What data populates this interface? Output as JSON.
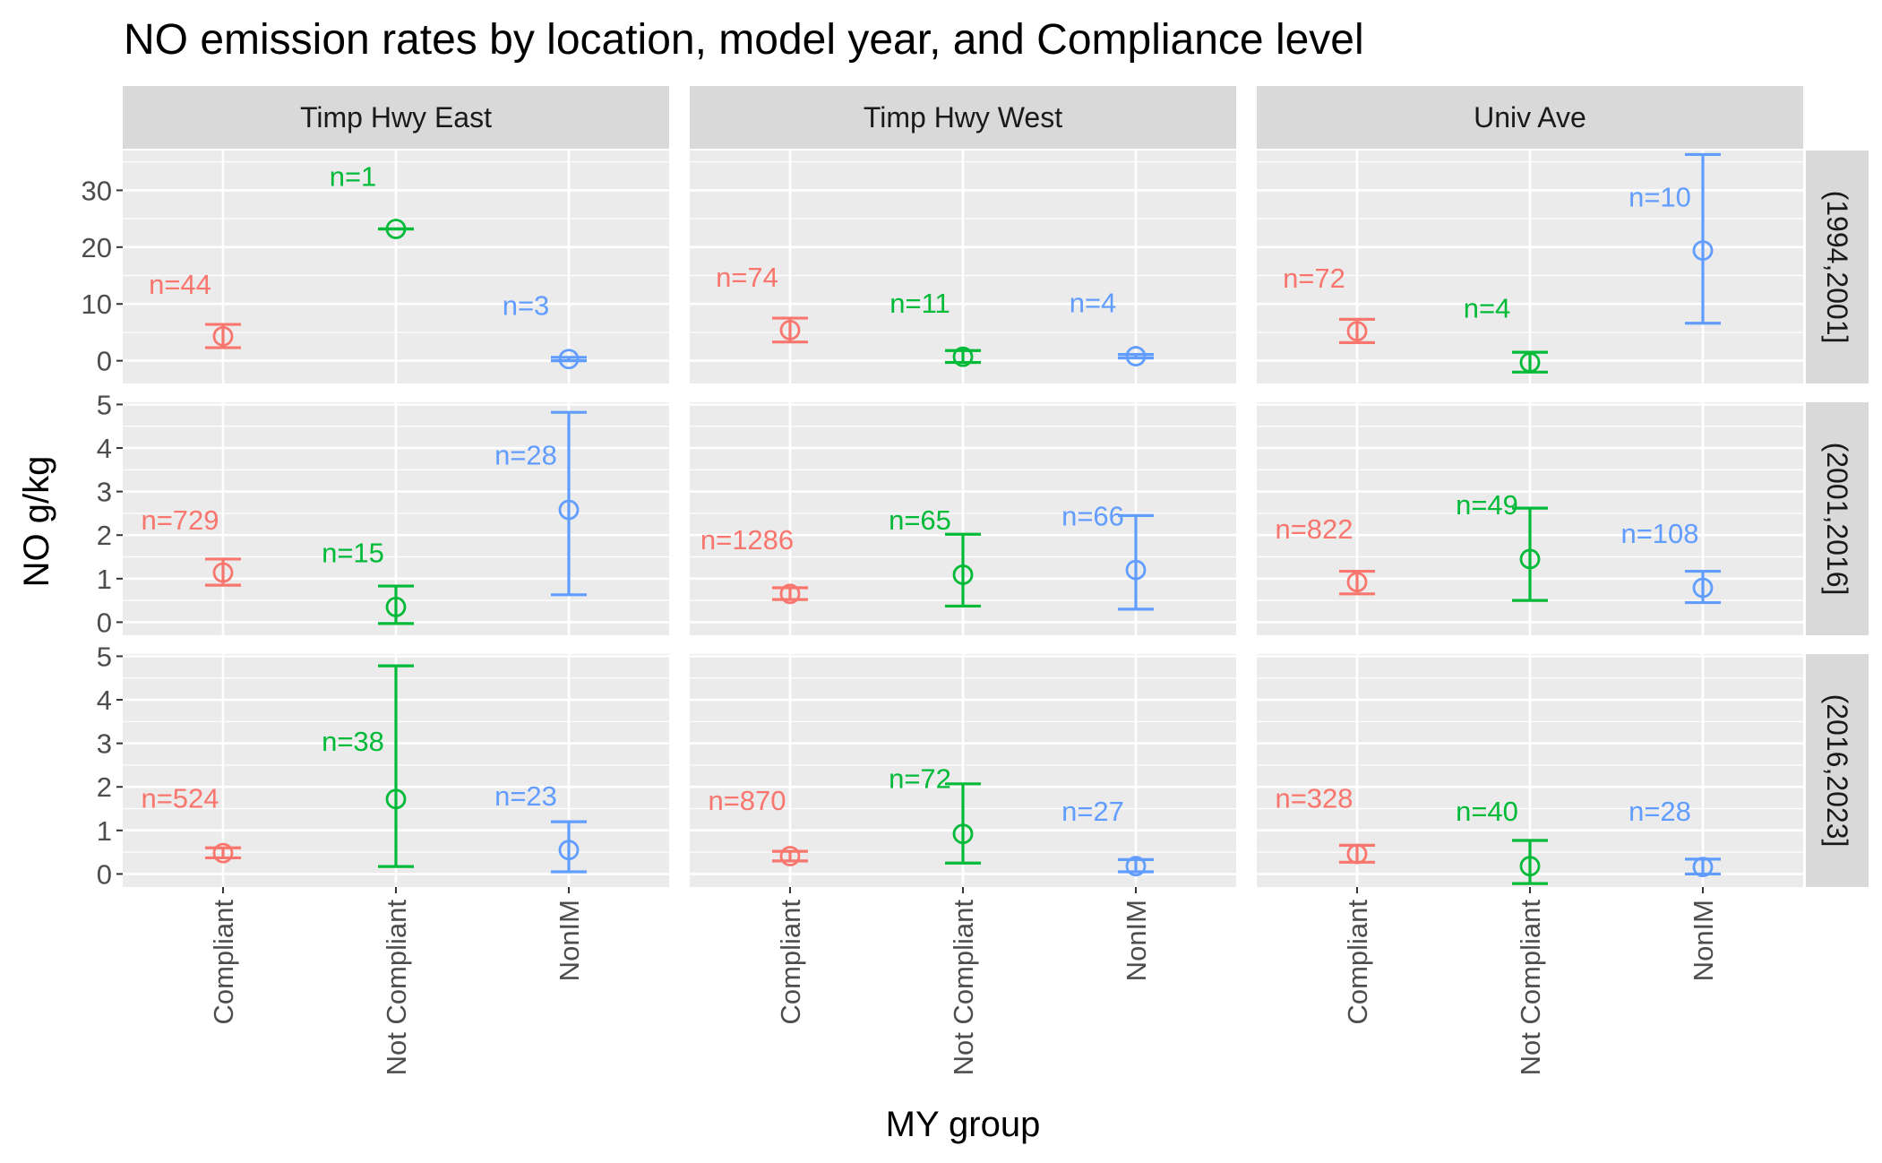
{
  "chart_data": {
    "type": "scatter",
    "title": "NO emission rates by location, model year, and Compliance level",
    "xlabel": "MY group",
    "ylabel": "NO g/kg",
    "categories": [
      "Compliant",
      "Not Compliant",
      "NonIM"
    ],
    "columns": [
      "Timp Hwy East",
      "Timp Hwy West",
      "Univ Ave"
    ],
    "rows": [
      "(1994,2001]",
      "(2001,2016]",
      "(2016,2023]"
    ],
    "colors": {
      "Compliant": "#F8766D",
      "Not Compliant": "#00BA38",
      "NonIM": "#619CFF"
    },
    "grid": true,
    "legend": "none",
    "row_axes": [
      {
        "ylim": [
          -4,
          37
        ],
        "ticks": [
          0,
          10,
          20,
          30
        ],
        "tick_labels": [
          "0",
          "10",
          "20",
          "30"
        ]
      },
      {
        "ylim": [
          -0.3,
          5.05
        ],
        "ticks": [
          0,
          1,
          2,
          3,
          4,
          5
        ],
        "tick_labels": [
          "0",
          "1",
          "2",
          "3",
          "4",
          "5"
        ]
      },
      {
        "ylim": [
          -0.3,
          5.05
        ],
        "ticks": [
          0,
          1,
          2,
          3,
          4,
          5
        ],
        "tick_labels": [
          "0",
          "1",
          "2",
          "3",
          "4",
          "5"
        ]
      }
    ],
    "panels": [
      {
        "column": "Timp Hwy East",
        "row": "(1994,2001]",
        "points": [
          {
            "x": "Compliant",
            "y": 4.3,
            "ymin": 2.3,
            "ymax": 6.4,
            "label": "n=44",
            "label_y": 13.5
          },
          {
            "x": "Not Compliant",
            "y": 23.2,
            "ymin": 23.2,
            "ymax": 23.2,
            "label": "n=1",
            "label_y": 32.5
          },
          {
            "x": "NonIM",
            "y": 0.3,
            "ymin": 0.0,
            "ymax": 0.6,
            "label": "n=3",
            "label_y": 9.8
          }
        ]
      },
      {
        "column": "Timp Hwy West",
        "row": "(1994,2001]",
        "points": [
          {
            "x": "Compliant",
            "y": 5.4,
            "ymin": 3.3,
            "ymax": 7.5,
            "label": "n=74",
            "label_y": 14.8
          },
          {
            "x": "Not Compliant",
            "y": 0.7,
            "ymin": -0.3,
            "ymax": 1.8,
            "label": "n=11",
            "label_y": 10.2
          },
          {
            "x": "NonIM",
            "y": 0.8,
            "ymin": 0.5,
            "ymax": 1.1,
            "label": "n=4",
            "label_y": 10.3
          }
        ]
      },
      {
        "column": "Univ Ave",
        "row": "(1994,2001]",
        "points": [
          {
            "x": "Compliant",
            "y": 5.2,
            "ymin": 3.2,
            "ymax": 7.3,
            "label": "n=72",
            "label_y": 14.6
          },
          {
            "x": "Not Compliant",
            "y": -0.3,
            "ymin": -2.0,
            "ymax": 1.5,
            "label": "n=4",
            "label_y": 9.3
          },
          {
            "x": "NonIM",
            "y": 19.4,
            "ymin": 6.6,
            "ymax": 36.3,
            "label": "n=10",
            "label_y": 28.9
          }
        ]
      },
      {
        "column": "Timp Hwy East",
        "row": "(2001,2016]",
        "points": [
          {
            "x": "Compliant",
            "y": 1.14,
            "ymin": 0.85,
            "ymax": 1.45,
            "label": "n=729",
            "label_y": 2.35
          },
          {
            "x": "Not Compliant",
            "y": 0.35,
            "ymin": -0.03,
            "ymax": 0.83,
            "label": "n=15",
            "label_y": 1.6
          },
          {
            "x": "NonIM",
            "y": 2.58,
            "ymin": 0.63,
            "ymax": 4.82,
            "label": "n=28",
            "label_y": 3.85
          }
        ]
      },
      {
        "column": "Timp Hwy West",
        "row": "(2001,2016]",
        "points": [
          {
            "x": "Compliant",
            "y": 0.65,
            "ymin": 0.52,
            "ymax": 0.79,
            "label": "n=1286",
            "label_y": 1.9
          },
          {
            "x": "Not Compliant",
            "y": 1.09,
            "ymin": 0.37,
            "ymax": 2.02,
            "label": "n=65",
            "label_y": 2.35
          },
          {
            "x": "NonIM",
            "y": 1.2,
            "ymin": 0.3,
            "ymax": 2.45,
            "label": "n=66",
            "label_y": 2.45
          }
        ]
      },
      {
        "column": "Univ Ave",
        "row": "(2001,2016]",
        "points": [
          {
            "x": "Compliant",
            "y": 0.92,
            "ymin": 0.65,
            "ymax": 1.17,
            "label": "n=822",
            "label_y": 2.15
          },
          {
            "x": "Not Compliant",
            "y": 1.45,
            "ymin": 0.5,
            "ymax": 2.62,
            "label": "n=49",
            "label_y": 2.7
          },
          {
            "x": "NonIM",
            "y": 0.79,
            "ymin": 0.45,
            "ymax": 1.17,
            "label": "n=108",
            "label_y": 2.05
          }
        ]
      },
      {
        "column": "Timp Hwy East",
        "row": "(2016,2023]",
        "points": [
          {
            "x": "Compliant",
            "y": 0.48,
            "ymin": 0.37,
            "ymax": 0.6,
            "label": "n=524",
            "label_y": 1.75
          },
          {
            "x": "Not Compliant",
            "y": 1.72,
            "ymin": 0.17,
            "ymax": 4.78,
            "label": "n=38",
            "label_y": 3.05
          },
          {
            "x": "NonIM",
            "y": 0.55,
            "ymin": 0.05,
            "ymax": 1.2,
            "label": "n=23",
            "label_y": 1.8
          }
        ]
      },
      {
        "column": "Timp Hwy West",
        "row": "(2016,2023]",
        "points": [
          {
            "x": "Compliant",
            "y": 0.41,
            "ymin": 0.3,
            "ymax": 0.52,
            "label": "n=870",
            "label_y": 1.7
          },
          {
            "x": "Not Compliant",
            "y": 0.92,
            "ymin": 0.25,
            "ymax": 2.07,
            "label": "n=72",
            "label_y": 2.2
          },
          {
            "x": "NonIM",
            "y": 0.18,
            "ymin": 0.05,
            "ymax": 0.33,
            "label": "n=27",
            "label_y": 1.45
          }
        ]
      },
      {
        "column": "Univ Ave",
        "row": "(2016,2023]",
        "points": [
          {
            "x": "Compliant",
            "y": 0.46,
            "ymin": 0.27,
            "ymax": 0.66,
            "label": "n=328",
            "label_y": 1.75
          },
          {
            "x": "Not Compliant",
            "y": 0.18,
            "ymin": -0.22,
            "ymax": 0.77,
            "label": "n=40",
            "label_y": 1.45
          },
          {
            "x": "NonIM",
            "y": 0.16,
            "ymin": 0.0,
            "ymax": 0.34,
            "label": "n=28",
            "label_y": 1.45
          }
        ]
      }
    ]
  }
}
